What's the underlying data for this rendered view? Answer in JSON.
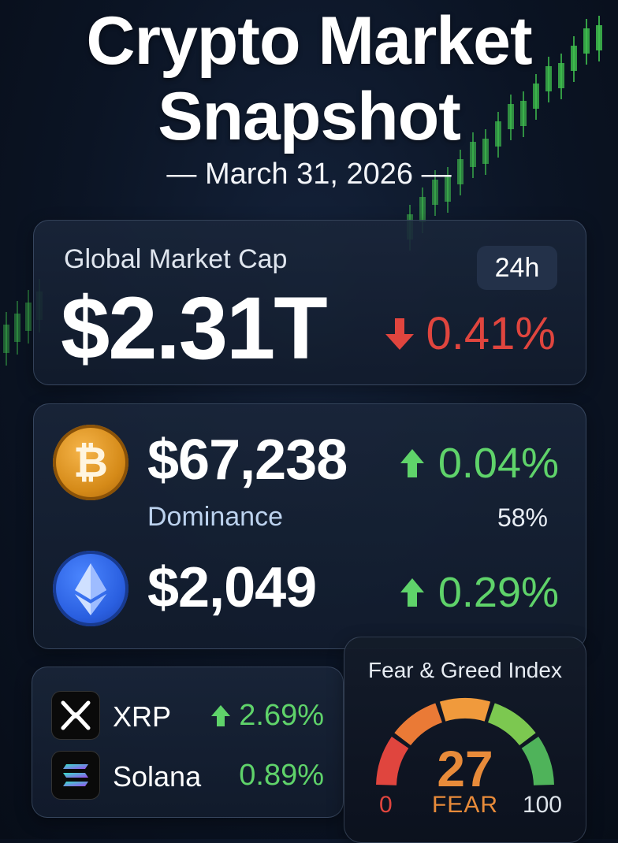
{
  "header": {
    "title_line1": "Crypto Market",
    "title_line2": "Snapshot",
    "date": "— March 31, 2026 —"
  },
  "global_market": {
    "label": "Global Market Cap",
    "badge": "24h",
    "value": "$2.31T",
    "change": "0.41%",
    "direction": "down"
  },
  "bitcoin": {
    "price": "$67,238",
    "change": "0.04%",
    "direction": "up",
    "dominance_label": "Dominance",
    "dominance_value": "58%"
  },
  "ethereum": {
    "price": "$2,049",
    "change": "0.29%",
    "direction": "up"
  },
  "altcoins": [
    {
      "name": "XRP",
      "change": "2.69%",
      "direction": "up"
    },
    {
      "name": "Solana",
      "change": "0.89%"
    }
  ],
  "fear_greed": {
    "title": "Fear & Greed Index",
    "value": 27,
    "label": "FEAR",
    "min": "0",
    "max": "100"
  },
  "colors": {
    "up": "#5fd36a",
    "down": "#e0453e",
    "fear": "#e88b3a",
    "bitcoin": "#f2a23a",
    "ethereum": "#3b74f0"
  }
}
